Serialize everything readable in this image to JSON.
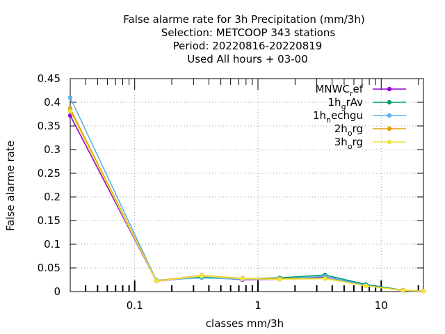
{
  "chart_data": {
    "type": "line",
    "title_lines": [
      "False alarme rate  for 3h Precipitation (mm/3h)",
      "Selection: METCOOP    343 stations",
      "Period: 20220816-20220819",
      "Used  All hours  + 03-00"
    ],
    "xlabel": "classes mm/3h",
    "ylabel": "False alarme rate",
    "x_scale": "log",
    "xlim": [
      0.03,
      22
    ],
    "ylim": [
      0,
      0.45
    ],
    "x_ticks": [
      {
        "value": 0.1,
        "label": "0.1"
      },
      {
        "value": 1,
        "label": "1"
      },
      {
        "value": 10,
        "label": "10"
      }
    ],
    "y_ticks": [
      {
        "value": 0,
        "label": "0"
      },
      {
        "value": 0.05,
        "label": "0.05"
      },
      {
        "value": 0.1,
        "label": "0.1"
      },
      {
        "value": 0.15,
        "label": "0.15"
      },
      {
        "value": 0.2,
        "label": "0.2"
      },
      {
        "value": 0.25,
        "label": "0.25"
      },
      {
        "value": 0.3,
        "label": "0.3"
      },
      {
        "value": 0.35,
        "label": "0.35"
      },
      {
        "value": 0.4,
        "label": "0.4"
      },
      {
        "value": 0.45,
        "label": "0.45"
      }
    ],
    "grid": true,
    "legend_position": "top-right",
    "x": [
      0.03,
      0.15,
      0.35,
      0.75,
      1.5,
      3.5,
      7.5,
      15,
      22
    ],
    "series": [
      {
        "name_main": "MNWC",
        "name_sub": "r",
        "name_rest": "ef",
        "color": "#9400d3",
        "values": [
          0.372,
          0.022,
          0.031,
          0.025,
          0.026,
          0.031,
          0.014,
          0.002,
          0.001
        ]
      },
      {
        "name_main": "1h",
        "name_sub": "g",
        "name_rest": "rAv",
        "color": "#009e73",
        "values": [
          0.383,
          0.023,
          0.031,
          0.027,
          0.029,
          0.035,
          0.015,
          0.003,
          0.001
        ]
      },
      {
        "name_main": "1h",
        "name_sub": "n",
        "name_rest": "echgu",
        "color": "#56b4e9",
        "values": [
          0.41,
          0.024,
          0.029,
          0.026,
          0.027,
          0.032,
          0.013,
          0.002,
          0.001
        ]
      },
      {
        "name_main": "2h",
        "name_sub": "o",
        "name_rest": "rg",
        "color": "#e69f00",
        "values": [
          0.387,
          0.023,
          0.034,
          0.028,
          0.027,
          0.028,
          0.012,
          0.003,
          0.001
        ]
      },
      {
        "name_main": "3h",
        "name_sub": "o",
        "name_rest": "rg",
        "color": "#f0e442",
        "values": [
          0.381,
          0.022,
          0.033,
          0.027,
          0.026,
          0.027,
          0.012,
          0.002,
          0.001
        ]
      }
    ]
  }
}
